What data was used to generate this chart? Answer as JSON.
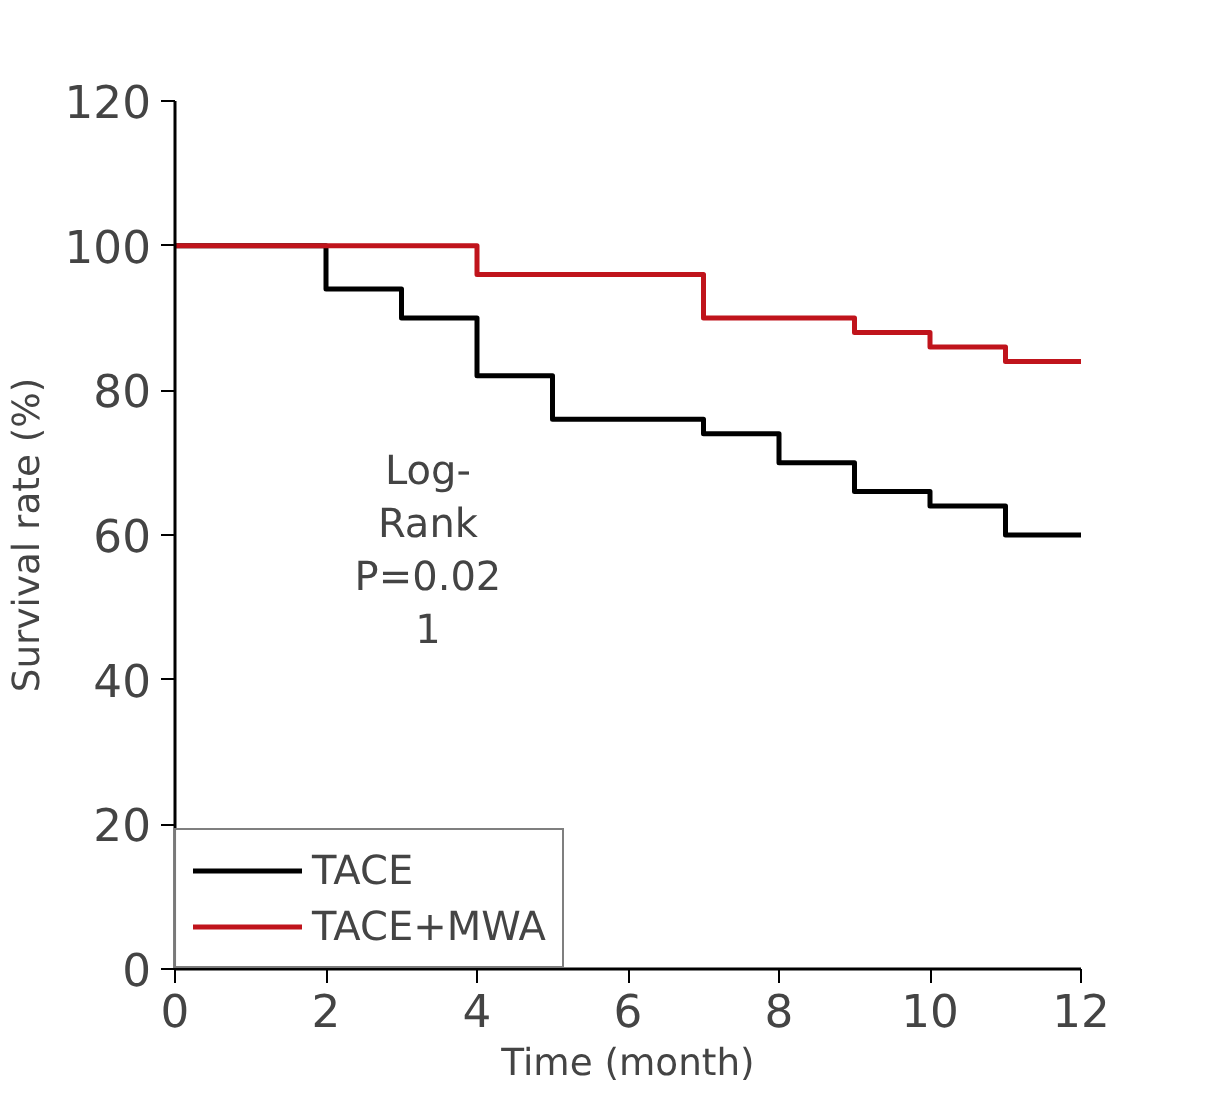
{
  "chart_data": {
    "type": "step",
    "xlabel": "Time (month)",
    "ylabel": "Survival rate (%)",
    "xlim": [
      0,
      12
    ],
    "ylim": [
      0,
      120
    ],
    "xticks": [
      0,
      2,
      4,
      6,
      8,
      10,
      12
    ],
    "yticks": [
      0,
      20,
      40,
      60,
      80,
      100,
      120
    ],
    "grid": false,
    "legend": "bottom left",
    "line_style": "solid",
    "marker": "none",
    "annotations": [
      "Log-\nRank\nP=0.02\n1"
    ],
    "series": [
      {
        "name": "TACE",
        "color": "#000000",
        "x": [
          0,
          2,
          3,
          4,
          5,
          7,
          8,
          9,
          10,
          11,
          12
        ],
        "values": [
          100,
          94,
          90,
          82,
          76,
          74,
          70,
          66,
          64,
          60,
          60
        ]
      },
      {
        "name": "TACE+MWA",
        "color": "#c0141c",
        "x": [
          0,
          4,
          7,
          9,
          10,
          11,
          12
        ],
        "values": [
          100,
          96,
          90,
          88,
          86,
          84,
          84
        ]
      }
    ]
  }
}
